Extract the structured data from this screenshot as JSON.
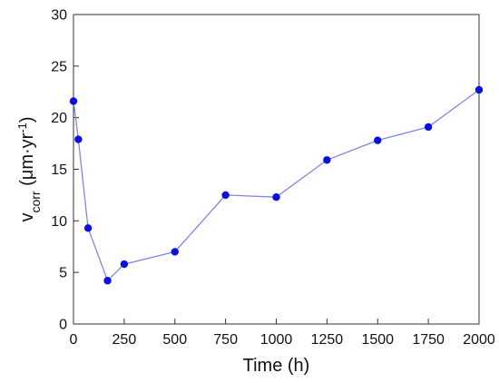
{
  "chart_data": {
    "type": "line",
    "xlabel": "Time (h)",
    "ylabel": {
      "main": "v",
      "sub": "corr",
      "unit_pre": " (μm·yr",
      "unit_sup": "-1",
      "unit_post": ")"
    },
    "xlim": [
      0,
      2000
    ],
    "ylim": [
      0,
      30
    ],
    "xticks": [
      0,
      250,
      500,
      750,
      1000,
      1250,
      1500,
      1750,
      2000
    ],
    "yticks": [
      0,
      5,
      10,
      15,
      20,
      25,
      30
    ],
    "grid": false,
    "series": [
      {
        "color": "#0a10e0",
        "line_color": "#7f86e6",
        "x": [
          0,
          24,
          72,
          168,
          250,
          500,
          750,
          1000,
          1250,
          1500,
          1750,
          2000
        ],
        "y": [
          21.6,
          17.9,
          9.3,
          4.2,
          5.8,
          7.0,
          12.5,
          12.3,
          15.9,
          17.8,
          19.1,
          22.7
        ]
      }
    ]
  }
}
